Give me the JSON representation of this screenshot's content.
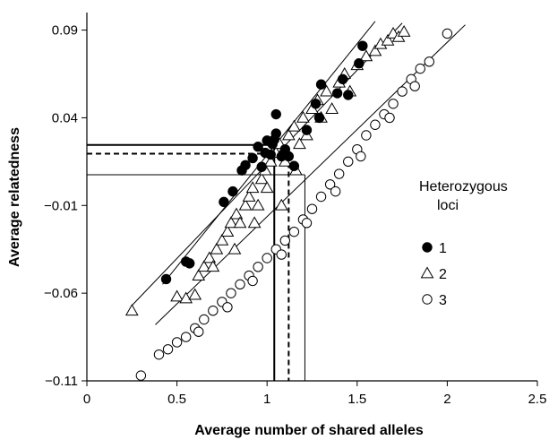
{
  "chart_data": {
    "type": "scatter",
    "title": "",
    "xlabel": "Average number of shared alleles",
    "ylabel": "Average relatedness",
    "xlim": [
      0,
      2.5
    ],
    "ylim": [
      -0.11,
      0.1
    ],
    "x_ticks": [
      "0",
      "0.5",
      "1",
      "1.5",
      "2",
      "2.5"
    ],
    "x_tick_values": [
      0,
      0.5,
      1,
      1.5,
      2,
      2.5
    ],
    "y_ticks": [
      "0.09",
      "0.04",
      "−0.01",
      "−0.06",
      "−0.11"
    ],
    "y_tick_values": [
      0.09,
      0.04,
      -0.01,
      -0.06,
      -0.11
    ],
    "grid": false,
    "legend": {
      "title_line1": "Heterozygous",
      "title_line2": "loci",
      "placement": "right",
      "entries": [
        {
          "label": "1",
          "marker": "filled-circle"
        },
        {
          "label": "2",
          "marker": "open-triangle"
        },
        {
          "label": "3",
          "marker": "open-circle"
        }
      ]
    },
    "regression_lines": [
      {
        "series": "1",
        "from": [
          0.42,
          -0.055
        ],
        "to": [
          1.6,
          0.095
        ]
      },
      {
        "series": "2",
        "from": [
          0.25,
          -0.067
        ],
        "to": [
          1.75,
          0.094
        ]
      },
      {
        "series": "3",
        "from": [
          0.38,
          -0.078
        ],
        "to": [
          2.1,
          0.093
        ]
      }
    ],
    "reference_lines": [
      {
        "style": "solid-thick",
        "x": 1.04,
        "y": 0.0245
      },
      {
        "style": "dashed",
        "x": 1.12,
        "y": 0.0195
      },
      {
        "style": "solid-thin",
        "x": 1.21,
        "y": 0.0075
      }
    ],
    "series": [
      {
        "name": "1",
        "marker": "filled-circle",
        "points": [
          [
            0.44,
            -0.052
          ],
          [
            0.55,
            -0.042
          ],
          [
            0.57,
            -0.043
          ],
          [
            0.76,
            -0.008
          ],
          [
            0.81,
            -0.002
          ],
          [
            0.86,
            0.01
          ],
          [
            0.88,
            0.013
          ],
          [
            0.92,
            0.017
          ],
          [
            0.95,
            0.0235
          ],
          [
            0.97,
            0.012
          ],
          [
            0.99,
            0.02
          ],
          [
            1.0,
            0.027
          ],
          [
            1.02,
            0.019
          ],
          [
            1.03,
            0.025
          ],
          [
            1.04,
            0.0275
          ],
          [
            1.05,
            0.031
          ],
          [
            1.05,
            0.042
          ],
          [
            1.08,
            0.018
          ],
          [
            1.1,
            0.022
          ],
          [
            1.12,
            0.018
          ],
          [
            1.15,
            0.0125
          ],
          [
            1.22,
            0.033
          ],
          [
            1.27,
            0.048
          ],
          [
            1.29,
            0.04
          ],
          [
            1.3,
            0.059
          ],
          [
            1.39,
            0.054
          ],
          [
            1.42,
            0.062
          ],
          [
            1.45,
            0.053
          ],
          [
            1.51,
            0.071
          ],
          [
            1.53,
            0.081
          ]
        ]
      },
      {
        "name": "2",
        "marker": "open-triangle",
        "points": [
          [
            0.25,
            -0.07
          ],
          [
            0.5,
            -0.062
          ],
          [
            0.55,
            -0.063
          ],
          [
            0.6,
            -0.061
          ],
          [
            0.62,
            -0.05
          ],
          [
            0.65,
            -0.045
          ],
          [
            0.68,
            -0.04
          ],
          [
            0.72,
            -0.035
          ],
          [
            0.75,
            -0.03
          ],
          [
            0.78,
            -0.025
          ],
          [
            0.8,
            -0.02
          ],
          [
            0.83,
            -0.015
          ],
          [
            0.85,
            -0.02
          ],
          [
            0.88,
            -0.01
          ],
          [
            0.9,
            -0.005
          ],
          [
            0.92,
            0.0
          ],
          [
            0.95,
            -0.01
          ],
          [
            0.97,
            0.005
          ],
          [
            0.99,
            0.01
          ],
          [
            1.0,
            0.0
          ],
          [
            1.02,
            0.015
          ],
          [
            1.05,
            0.02
          ],
          [
            1.07,
            0.025
          ],
          [
            1.1,
            0.015
          ],
          [
            1.12,
            0.03
          ],
          [
            1.15,
            0.035
          ],
          [
            1.18,
            0.025
          ],
          [
            1.2,
            0.04
          ],
          [
            1.22,
            0.03
          ],
          [
            1.25,
            0.045
          ],
          [
            1.28,
            0.05
          ],
          [
            1.3,
            0.04
          ],
          [
            1.33,
            0.055
          ],
          [
            1.36,
            0.045
          ],
          [
            1.4,
            0.06
          ],
          [
            1.43,
            0.065
          ],
          [
            1.46,
            0.055
          ],
          [
            1.5,
            0.07
          ],
          [
            1.55,
            0.075
          ],
          [
            1.6,
            0.078
          ],
          [
            1.63,
            0.082
          ],
          [
            1.67,
            0.084
          ],
          [
            1.7,
            0.088
          ],
          [
            1.73,
            0.086
          ],
          [
            1.76,
            0.089
          ],
          [
            0.7,
            -0.045
          ],
          [
            0.82,
            -0.035
          ],
          [
            0.93,
            -0.02
          ],
          [
            1.08,
            -0.01
          ],
          [
            1.16,
            0.01
          ]
        ]
      },
      {
        "name": "3",
        "marker": "open-circle",
        "points": [
          [
            0.3,
            -0.107
          ],
          [
            0.4,
            -0.095
          ],
          [
            0.45,
            -0.092
          ],
          [
            0.5,
            -0.088
          ],
          [
            0.55,
            -0.085
          ],
          [
            0.6,
            -0.08
          ],
          [
            0.65,
            -0.075
          ],
          [
            0.7,
            -0.07
          ],
          [
            0.75,
            -0.065
          ],
          [
            0.8,
            -0.06
          ],
          [
            0.85,
            -0.055
          ],
          [
            0.9,
            -0.05
          ],
          [
            0.95,
            -0.045
          ],
          [
            1.0,
            -0.04
          ],
          [
            1.05,
            -0.035
          ],
          [
            1.1,
            -0.03
          ],
          [
            1.15,
            -0.025
          ],
          [
            1.2,
            -0.018
          ],
          [
            1.25,
            -0.012
          ],
          [
            1.3,
            -0.005
          ],
          [
            1.35,
            0.002
          ],
          [
            1.4,
            0.008
          ],
          [
            1.45,
            0.015
          ],
          [
            1.5,
            0.022
          ],
          [
            1.55,
            0.03
          ],
          [
            1.6,
            0.036
          ],
          [
            1.65,
            0.042
          ],
          [
            1.7,
            0.048
          ],
          [
            1.75,
            0.055
          ],
          [
            1.8,
            0.062
          ],
          [
            1.85,
            0.068
          ],
          [
            1.9,
            0.072
          ],
          [
            2.0,
            0.088
          ],
          [
            0.62,
            -0.082
          ],
          [
            0.78,
            -0.068
          ],
          [
            0.92,
            -0.053
          ],
          [
            1.08,
            -0.038
          ],
          [
            1.22,
            -0.02
          ],
          [
            1.38,
            -0.002
          ],
          [
            1.52,
            0.018
          ],
          [
            1.68,
            0.04
          ],
          [
            1.82,
            0.058
          ]
        ]
      }
    ]
  }
}
